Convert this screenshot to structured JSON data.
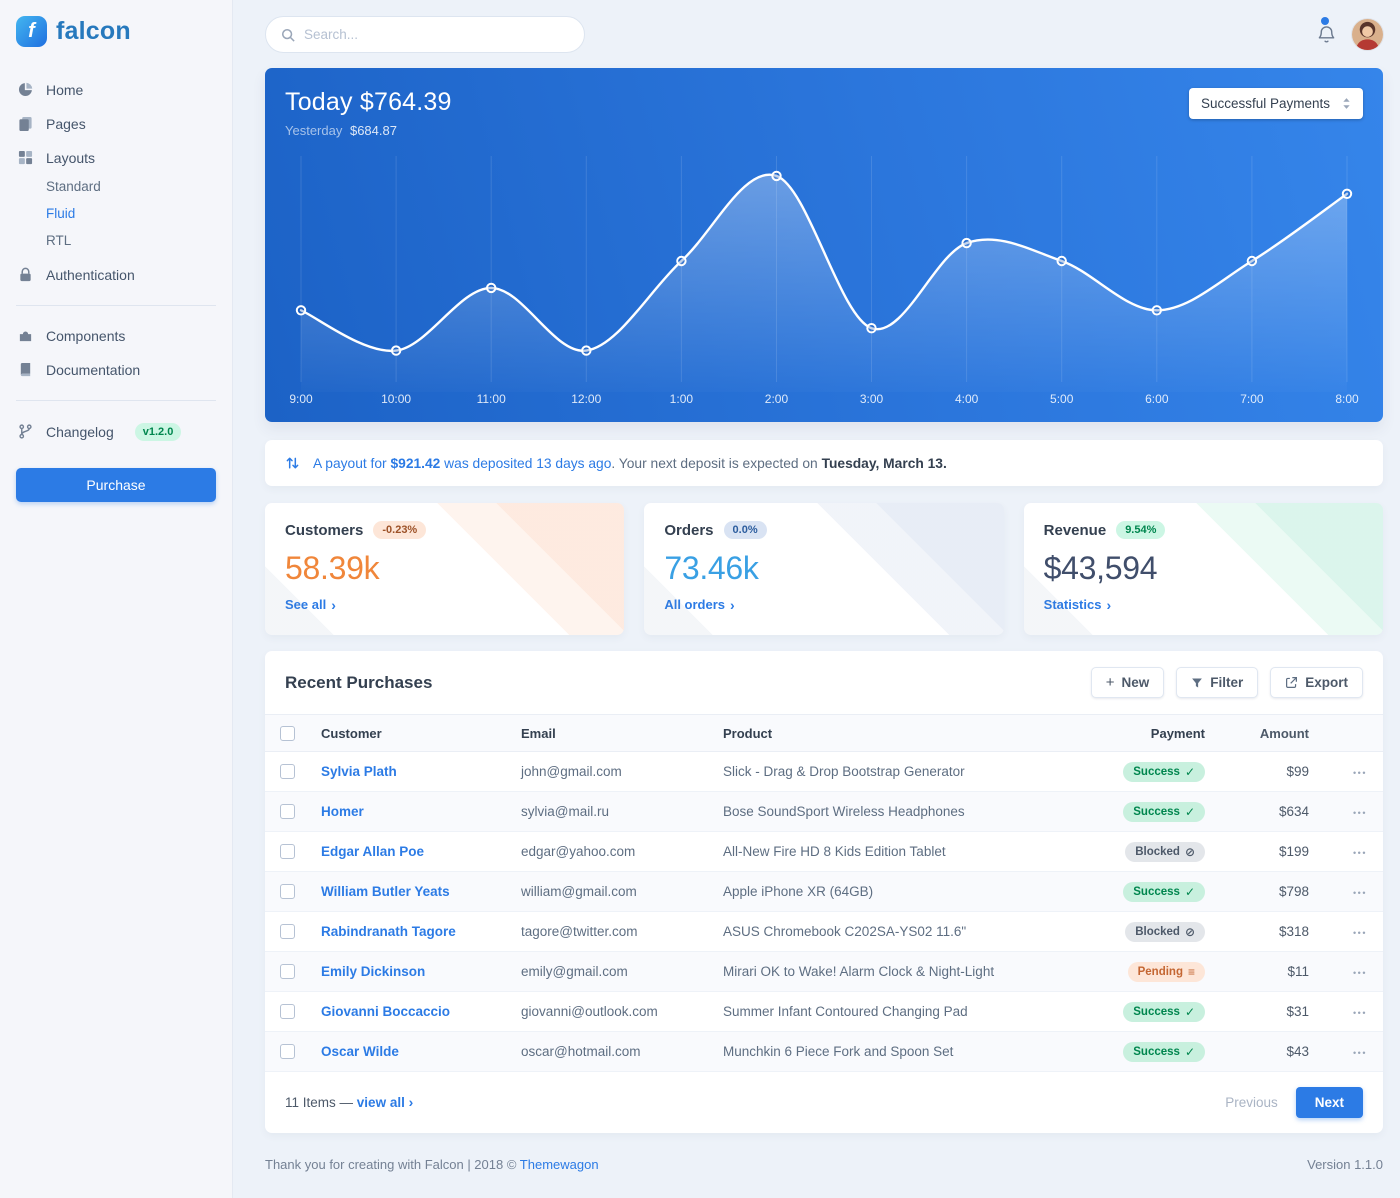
{
  "brand": {
    "name": "falcon"
  },
  "colors": {
    "primary": "#2c7be5",
    "success_soft_bg": "#ccf6e4",
    "success_text": "#00864e",
    "warning_soft_bg": "#fde6d8",
    "warning_text": "#9d5228",
    "blocked_bg": "#e3e6ea",
    "blocked_text": "#4d5969",
    "pending_text": "#c46632",
    "customers_value": "#f0863a",
    "orders_value": "#39a0e4",
    "revenue_value": "#404e6b",
    "chart_gradient_start": "#1c62c6",
    "chart_gradient_end": "#3585ea"
  },
  "sidebar": {
    "nav": {
      "home": "Home",
      "pages": "Pages",
      "layouts": "Layouts",
      "layouts_children": [
        "Standard",
        "Fluid",
        "RTL"
      ],
      "authentication": "Authentication",
      "components": "Components",
      "documentation": "Documentation",
      "changelog": "Changelog",
      "changelog_badge": "v1.2.0"
    },
    "purchase_button": "Purchase"
  },
  "topbar": {
    "search_placeholder": "Search..."
  },
  "chart_card": {
    "title": "Today $764.39",
    "subtitle_label": "Yesterday",
    "subtitle_value": "$684.87",
    "select_value": "Successful Payments"
  },
  "chart_data": {
    "type": "line",
    "title": "Successful Payments by hour",
    "categories": [
      "9:00",
      "10:00",
      "11:00",
      "12:00",
      "1:00",
      "2:00",
      "3:00",
      "4:00",
      "5:00",
      "6:00",
      "7:00",
      "8:00"
    ],
    "series": [
      {
        "name": "Successful Payments",
        "values": [
          160,
          70,
          210,
          70,
          270,
          460,
          120,
          310,
          270,
          160,
          270,
          420
        ]
      }
    ],
    "ylim": [
      0,
      500
    ],
    "area": true,
    "grid": "vertical",
    "line_color": "#ffffff",
    "legend_position": "none"
  },
  "payout": {
    "link_pre": "A payout for ",
    "amount": "$921.42",
    "link_post": " was deposited 13 days ago",
    "middle": ". Your next deposit is expected on ",
    "date": "Tuesday, March 13."
  },
  "stats": [
    {
      "title": "Customers",
      "badge": "-0.23%",
      "value": "58.39k",
      "link": "See all"
    },
    {
      "title": "Orders",
      "badge": "0.0%",
      "value": "73.46k",
      "link": "All orders"
    },
    {
      "title": "Revenue",
      "badge": "9.54%",
      "value": "$43,594",
      "link": "Statistics"
    }
  ],
  "purchases": {
    "title": "Recent Purchases",
    "buttons": {
      "new": "New",
      "filter": "Filter",
      "export": "Export"
    },
    "columns": [
      "Customer",
      "Email",
      "Product",
      "Payment",
      "Amount"
    ],
    "rows": [
      {
        "customer": "Sylvia Plath",
        "email": "john@gmail.com",
        "product": "Slick - Drag & Drop Bootstrap Generator",
        "payment": "Success",
        "icon": "check",
        "amount": "$99"
      },
      {
        "customer": "Homer",
        "email": "sylvia@mail.ru",
        "product": "Bose SoundSport Wireless Headphones",
        "payment": "Success",
        "icon": "check",
        "amount": "$634"
      },
      {
        "customer": "Edgar Allan Poe",
        "email": "edgar@yahoo.com",
        "product": "All-New Fire HD 8 Kids Edition Tablet",
        "payment": "Blocked",
        "icon": "ban",
        "amount": "$199"
      },
      {
        "customer": "William Butler Yeats",
        "email": "william@gmail.com",
        "product": "Apple iPhone XR (64GB)",
        "payment": "Success",
        "icon": "check",
        "amount": "$798"
      },
      {
        "customer": "Rabindranath Tagore",
        "email": "tagore@twitter.com",
        "product": "ASUS Chromebook C202SA-YS02 11.6\"",
        "payment": "Blocked",
        "icon": "ban",
        "amount": "$318"
      },
      {
        "customer": "Emily Dickinson",
        "email": "emily@gmail.com",
        "product": "Mirari OK to Wake! Alarm Clock & Night-Light",
        "payment": "Pending",
        "icon": "stream",
        "amount": "$11"
      },
      {
        "customer": "Giovanni Boccaccio",
        "email": "giovanni@outlook.com",
        "product": "Summer Infant Contoured Changing Pad",
        "payment": "Success",
        "icon": "check",
        "amount": "$31"
      },
      {
        "customer": "Oscar Wilde",
        "email": "oscar@hotmail.com",
        "product": "Munchkin 6 Piece Fork and Spoon Set",
        "payment": "Success",
        "icon": "check",
        "amount": "$43"
      }
    ],
    "footer": {
      "items_text": "11 Items —",
      "view_all": "view all",
      "previous": "Previous",
      "next": "Next"
    }
  },
  "icon_glyphs": {
    "check": "✓",
    "ban": "⊘",
    "stream": "≡",
    "plus": "+",
    "chevron_right": "›",
    "dots": "•••"
  },
  "footer": {
    "thanks": "Thank you for creating with Falcon | 2018 © ",
    "link": "Themewagon",
    "version": "Version 1.1.0"
  }
}
